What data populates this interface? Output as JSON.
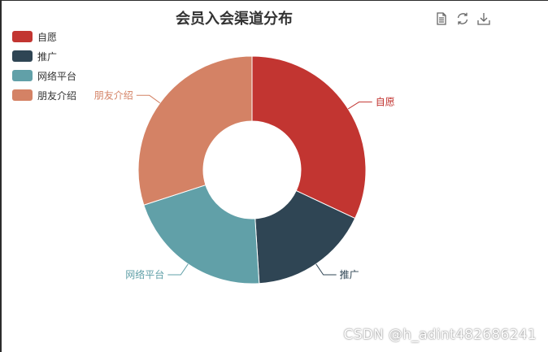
{
  "chart_data": {
    "type": "pie",
    "donut": true,
    "title": "会员入会渠道分布",
    "legend_position": "top-left",
    "slices": [
      {
        "label": "自愿",
        "value": 32,
        "color": "#c23531"
      },
      {
        "label": "推广",
        "value": 17,
        "color": "#2f4554"
      },
      {
        "label": "网络平台",
        "value": 21,
        "color": "#61a0a8"
      },
      {
        "label": "朋友介绍",
        "value": 30,
        "color": "#d48265"
      }
    ]
  },
  "toolbox": {
    "icons": [
      "data-view-icon",
      "refresh-icon",
      "save-image-icon"
    ],
    "color": "#666666"
  },
  "watermark": "CSDN @h_adint482686241"
}
